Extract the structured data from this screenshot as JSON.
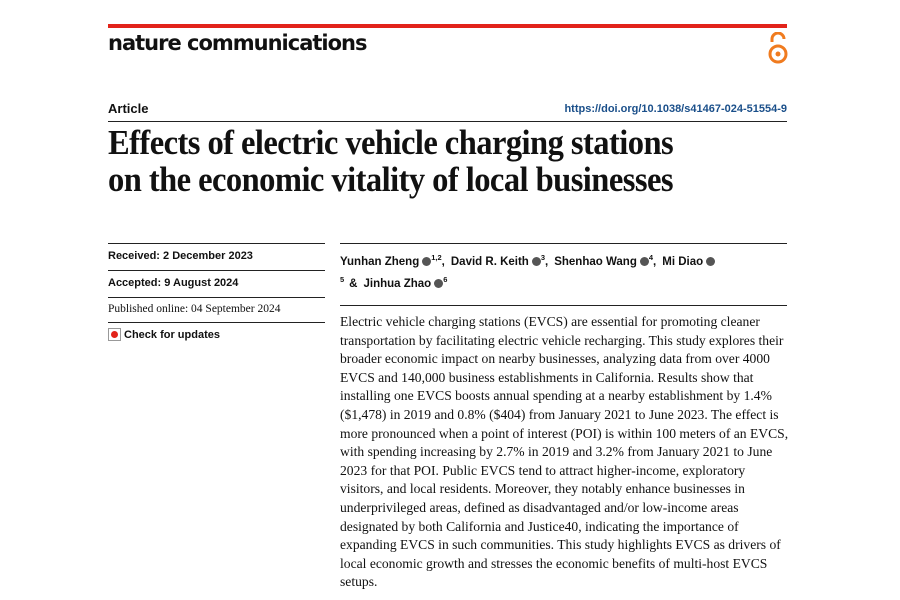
{
  "header": {
    "journal": "nature communications",
    "article_type": "Article",
    "doi": "https://doi.org/10.1038/s41467-024-51554-9"
  },
  "title": {
    "lines": [
      "Effects of electric vehicle charging stations",
      "on the economic vitality of local businesses"
    ]
  },
  "dates": {
    "received": "Received: 2 December 2023",
    "accepted": "Accepted: 9 August 2024",
    "published": "Published online: 04 September 2024",
    "updates": "Check for updates"
  },
  "authors": [
    {
      "name": "Yunhan Zheng",
      "sup": "1,2",
      "sep": ","
    },
    {
      "name": "David R. Keith",
      "sup": "3",
      "sep": ","
    },
    {
      "name": "Shenhao Wang",
      "sup": "4",
      "sep": ","
    },
    {
      "name": "Mi Diao",
      "sup": "5",
      "sep": "&"
    },
    {
      "name": "Jinhua Zhao",
      "sup": "6"
    }
  ],
  "abstract": "Electric vehicle charging stations (EVCS) are essential for promoting cleaner transportation by facilitating electric vehicle recharging. This study explores their broader economic impact on nearby businesses, analyzing data from over 4000 EVCS and 140,000 business establishments in California. Results show that installing one EVCS boosts annual spending at a nearby establishment by 1.4% ($1,478) in 2019 and 0.8% ($404) from January 2021 to June 2023. The effect is more pronounced when a point of interest (POI) is within 100 meters of an EVCS, with spending increasing by 2.7% in 2019 and 3.2% from January 2021 to June 2023 for that POI. Public EVCS tend to attract higher-income, exploratory visitors, and local residents. Moreover, they notably enhance businesses in underprivileged areas, defined as disadvantaged and/or low-income areas designated by both California and Justice40, indicating the importance of expanding EVCS in such communities. This study highlights EVCS as drivers of local economic growth and stresses the economic benefits of multi-host EVCS setups."
}
